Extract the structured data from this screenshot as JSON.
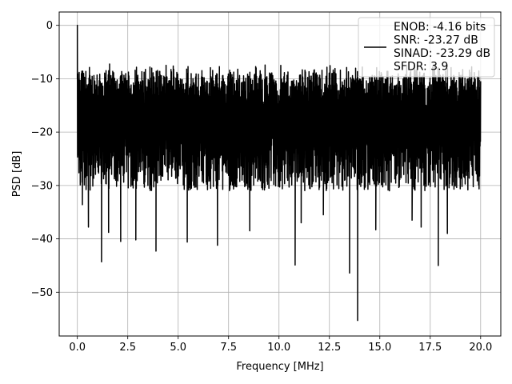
{
  "chart_data": {
    "type": "line",
    "title": "",
    "xlabel": "Frequency [MHz]",
    "ylabel": "PSD [dB]",
    "xlim": [
      -0.9,
      21.0
    ],
    "ylim": [
      -58.2,
      2.5
    ],
    "xticks": [
      0.0,
      2.5,
      5.0,
      7.5,
      10.0,
      12.5,
      15.0,
      17.5,
      20.0
    ],
    "xtick_labels": [
      "0.0",
      "2.5",
      "5.0",
      "7.5",
      "10.0",
      "12.5",
      "15.0",
      "17.5",
      "20.0"
    ],
    "yticks": [
      0,
      -10,
      -20,
      -30,
      -40,
      -50
    ],
    "ytick_labels": [
      "0",
      "−10",
      "−20",
      "−30",
      "−40",
      "−50"
    ],
    "grid": true,
    "legend_position": "top-right",
    "line_color": "#000000",
    "series": [
      {
        "name": "ENOB: -4.16 bits\nSNR: -23.27 dB\nSINAD: -23.29 dB\nSFDR: 3.9",
        "x_range": [
          0,
          20
        ],
        "noise_band_top": -10,
        "noise_band_bottom": -32,
        "peaks": [
          {
            "x": 0.0,
            "y": 0
          },
          {
            "x": 0.05,
            "y": -23.5
          }
        ],
        "dips": [
          {
            "x": 0.25,
            "y": -33.6
          },
          {
            "x": 0.55,
            "y": -37.8
          },
          {
            "x": 1.2,
            "y": -44.3
          },
          {
            "x": 1.55,
            "y": -38.8
          },
          {
            "x": 2.15,
            "y": -40.5
          },
          {
            "x": 2.9,
            "y": -40.2
          },
          {
            "x": 3.9,
            "y": -42.3
          },
          {
            "x": 5.45,
            "y": -40.6
          },
          {
            "x": 6.95,
            "y": -41.2
          },
          {
            "x": 8.55,
            "y": -38.5
          },
          {
            "x": 10.8,
            "y": -44.9
          },
          {
            "x": 11.1,
            "y": -37.0
          },
          {
            "x": 12.2,
            "y": -35.5
          },
          {
            "x": 13.5,
            "y": -46.4
          },
          {
            "x": 13.9,
            "y": -55.3
          },
          {
            "x": 14.8,
            "y": -38.3
          },
          {
            "x": 16.6,
            "y": -36.5
          },
          {
            "x": 17.05,
            "y": -37.8
          },
          {
            "x": 17.9,
            "y": -45.0
          },
          {
            "x": 18.35,
            "y": -39.0
          }
        ]
      }
    ]
  }
}
